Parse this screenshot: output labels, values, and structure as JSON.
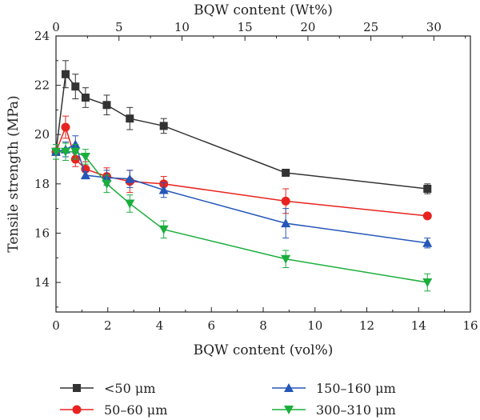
{
  "chart_data": {
    "type": "line",
    "xlabel": "BQW content (vol%)",
    "ylabel": "Tensile strength (MPa)",
    "x2label": "BQW content (Wt%)",
    "xlim": [
      0,
      16
    ],
    "ylim": [
      12.8,
      24
    ],
    "x2lim": [
      0,
      32.9
    ],
    "xticks": [
      0,
      2,
      4,
      6,
      8,
      10,
      12,
      14,
      16
    ],
    "yticks": [
      14,
      16,
      18,
      20,
      22,
      24
    ],
    "x2ticks": [
      0,
      5,
      10,
      15,
      20,
      25,
      30
    ],
    "grid": false,
    "legend_position": "bottom",
    "series": [
      {
        "name": "<50 μm",
        "color": "#333333",
        "marker": "square",
        "x": [
          0,
          0.37,
          0.75,
          1.14,
          1.96,
          2.85,
          4.16,
          8.87,
          14.34
        ],
        "y": [
          19.3,
          22.45,
          21.95,
          21.5,
          21.2,
          20.65,
          20.35,
          18.45,
          17.8
        ],
        "err": [
          0.3,
          0.55,
          0.5,
          0.4,
          0.4,
          0.45,
          0.3,
          0.1,
          0.2
        ]
      },
      {
        "name": "50–60 μm",
        "color": "#e8231f",
        "marker": "circle",
        "x": [
          0,
          0.37,
          0.75,
          1.14,
          1.96,
          2.85,
          4.16,
          8.87,
          14.34
        ],
        "y": [
          19.3,
          20.3,
          19.0,
          18.6,
          18.3,
          18.1,
          18.0,
          17.3,
          16.7
        ],
        "err": [
          0.3,
          0.45,
          0.3,
          0.3,
          0.35,
          0.45,
          0.3,
          0.5,
          0.1
        ]
      },
      {
        "name": "150–160 μm",
        "color": "#2457b8",
        "marker": "triangle-up",
        "x": [
          0,
          0.37,
          0.75,
          1.14,
          1.96,
          2.85,
          4.16,
          8.87,
          14.34
        ],
        "y": [
          19.3,
          19.4,
          19.6,
          18.35,
          18.25,
          18.2,
          17.75,
          16.4,
          15.6
        ],
        "err": [
          0.3,
          0.3,
          0.35,
          0.15,
          0.3,
          0.35,
          0.3,
          0.6,
          0.2
        ]
      },
      {
        "name": "300–310 μm",
        "color": "#1aae3c",
        "marker": "triangle-down",
        "x": [
          0,
          0.37,
          0.75,
          1.14,
          1.96,
          2.85,
          4.16,
          8.87,
          14.34
        ],
        "y": [
          19.3,
          19.3,
          19.3,
          19.1,
          18.0,
          17.2,
          16.15,
          14.95,
          14.0
        ],
        "err": [
          0.3,
          0.35,
          0.3,
          0.3,
          0.35,
          0.35,
          0.35,
          0.35,
          0.35
        ]
      }
    ]
  }
}
